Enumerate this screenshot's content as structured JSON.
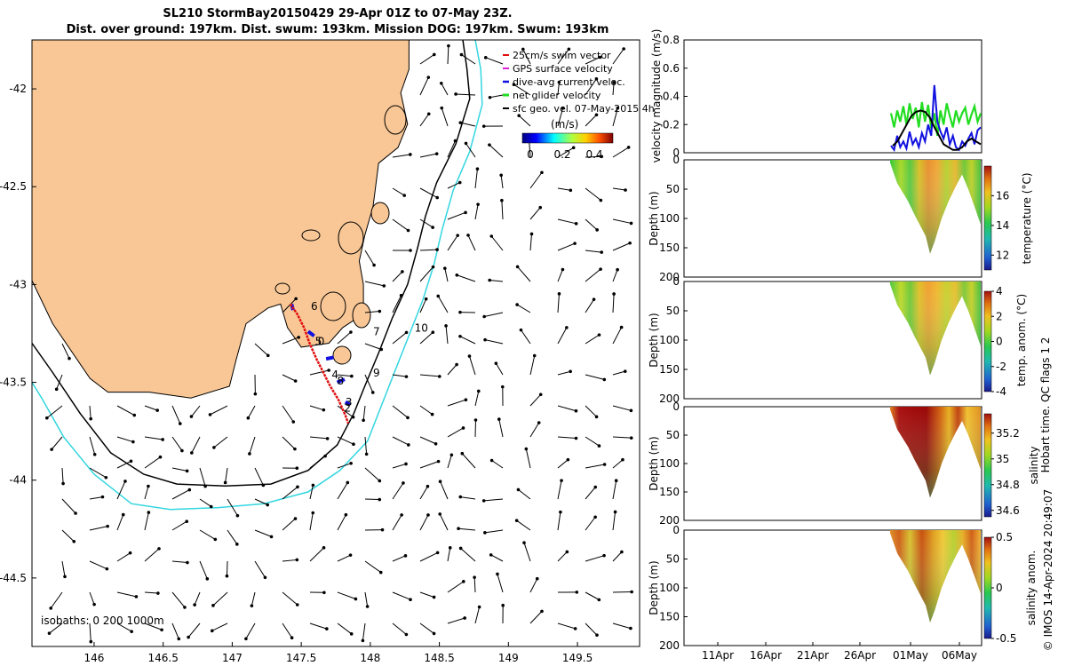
{
  "header": {
    "title_line1": "SL210 StormBay20150429 29-Apr 01Z to 07-May 23Z.",
    "title_line2": "Dist. over ground: 197km. Dist. swum: 193km. Mission DOG: 197km. Swum: 193km"
  },
  "colors": {
    "land": "#f9c796",
    "coast": "#000000",
    "isobath_200": "#000000",
    "isobath_1000": "#33d6e0",
    "track": "#e01010",
    "current": "#1010e0",
    "net": "#22dd22"
  },
  "chart_data": [
    {
      "name": "map",
      "type": "scatter",
      "xlabel": "",
      "ylabel": "",
      "xlim": [
        145.55,
        149.95
      ],
      "ylim": [
        -44.85,
        -41.75
      ],
      "x_ticks": [
        "146",
        "146.5",
        "147",
        "147.5",
        "148",
        "148.5",
        "149",
        "149.5"
      ],
      "y_ticks": [
        "-42",
        "-42.5",
        "-43",
        "-43.5",
        "-44",
        "-44.5"
      ],
      "legend": [
        "25cm/s swim vector",
        "GPS surface velocity",
        "dive-avg current veloc.",
        "net glider velocity",
        "sfc geo. vel. 07-May-2015 4h"
      ],
      "legend_colors": [
        "#e01010",
        "#dd22dd",
        "#1010e0",
        "#22dd22",
        "#000000"
      ],
      "colorbar_title": "(m/s)",
      "colorbar_ticks": [
        "0",
        "0.2",
        "0.4"
      ],
      "isobath_note": "isobaths: 0   200  1000m",
      "day_labels": [
        "6",
        "5",
        "0",
        "4",
        "8",
        "3",
        "2",
        "7",
        "9",
        "10"
      ],
      "track": [
        [
          147.42,
          -43.1
        ],
        [
          147.47,
          -43.15
        ],
        [
          147.52,
          -43.22
        ],
        [
          147.56,
          -43.3
        ],
        [
          147.61,
          -43.38
        ],
        [
          147.66,
          -43.45
        ],
        [
          147.71,
          -43.52
        ],
        [
          147.77,
          -43.59
        ],
        [
          147.82,
          -43.67
        ],
        [
          147.84,
          -43.71
        ]
      ],
      "coast": [
        [
          145.55,
          -41.75
        ],
        [
          148.28,
          -41.75
        ],
        [
          148.28,
          -41.9
        ],
        [
          148.22,
          -42.02
        ],
        [
          148.27,
          -42.18
        ],
        [
          148.2,
          -42.3
        ],
        [
          148.06,
          -42.38
        ],
        [
          148.02,
          -42.6
        ],
        [
          147.96,
          -42.75
        ],
        [
          147.92,
          -42.88
        ],
        [
          147.95,
          -43.0
        ],
        [
          147.95,
          -43.15
        ],
        [
          147.8,
          -43.22
        ],
        [
          147.7,
          -43.3
        ],
        [
          147.5,
          -43.32
        ],
        [
          147.4,
          -43.22
        ],
        [
          147.35,
          -43.1
        ],
        [
          147.26,
          -43.12
        ],
        [
          147.1,
          -43.2
        ],
        [
          147.03,
          -43.38
        ],
        [
          146.98,
          -43.52
        ],
        [
          146.7,
          -43.58
        ],
        [
          146.4,
          -43.55
        ],
        [
          146.1,
          -43.55
        ],
        [
          145.97,
          -43.48
        ],
        [
          145.7,
          -43.2
        ],
        [
          145.55,
          -42.98
        ]
      ],
      "isobath_200": [
        [
          148.67,
          -41.75
        ],
        [
          148.7,
          -41.9
        ],
        [
          148.72,
          -42.05
        ],
        [
          148.62,
          -42.28
        ],
        [
          148.48,
          -42.48
        ],
        [
          148.4,
          -42.65
        ],
        [
          148.34,
          -42.82
        ],
        [
          148.27,
          -43.0
        ],
        [
          148.16,
          -43.17
        ],
        [
          148.06,
          -43.35
        ],
        [
          147.96,
          -43.52
        ],
        [
          147.88,
          -43.66
        ],
        [
          147.76,
          -43.82
        ],
        [
          147.55,
          -43.95
        ],
        [
          147.28,
          -44.02
        ],
        [
          146.95,
          -44.03
        ],
        [
          146.6,
          -44.02
        ],
        [
          146.36,
          -43.97
        ],
        [
          146.12,
          -43.86
        ],
        [
          145.9,
          -43.66
        ],
        [
          145.7,
          -43.45
        ],
        [
          145.55,
          -43.3
        ]
      ],
      "isobath_1000": [
        [
          148.76,
          -41.75
        ],
        [
          148.8,
          -41.9
        ],
        [
          148.81,
          -42.08
        ],
        [
          148.72,
          -42.32
        ],
        [
          148.6,
          -42.52
        ],
        [
          148.52,
          -42.72
        ],
        [
          148.46,
          -42.9
        ],
        [
          148.38,
          -43.08
        ],
        [
          148.28,
          -43.26
        ],
        [
          148.18,
          -43.44
        ],
        [
          148.08,
          -43.62
        ],
        [
          147.98,
          -43.8
        ],
        [
          147.78,
          -43.95
        ],
        [
          147.55,
          -44.06
        ],
        [
          147.23,
          -44.12
        ],
        [
          146.9,
          -44.14
        ],
        [
          146.55,
          -44.15
        ],
        [
          146.27,
          -44.12
        ],
        [
          146.0,
          -43.97
        ],
        [
          145.78,
          -43.78
        ],
        [
          145.62,
          -43.58
        ],
        [
          145.55,
          -43.5
        ]
      ],
      "current_vectors": [
        [
          147.43,
          -43.1,
          0.01,
          -0.04
        ],
        [
          147.55,
          -43.24,
          0.04,
          -0.03
        ],
        [
          147.68,
          -43.38,
          0.05,
          0.01
        ],
        [
          147.76,
          -43.5,
          0.05,
          0.02
        ],
        [
          147.82,
          -43.6,
          0.03,
          -0.02
        ]
      ]
    },
    {
      "name": "velocity",
      "type": "line",
      "ylabel": "velocity magnitude (m/s)",
      "ylim": [
        0,
        0.8
      ],
      "y_ticks": [
        "0",
        "0.2",
        "0.4",
        "0.6",
        "0.8"
      ],
      "xlim": [
        0,
        48
      ],
      "series": [
        {
          "name": "net glider velocity",
          "values": [
            0.28,
            0.18,
            0.3,
            0.22,
            0.33,
            0.2,
            0.35,
            0.24,
            0.32,
            0.18,
            0.36,
            0.22,
            0.34,
            0.17,
            0.28,
            0.12,
            0.3,
            0.2,
            0.35,
            0.26,
            0.18,
            0.3,
            0.22,
            0.28,
            0.32,
            0.2,
            0.27,
            0.33,
            0.22,
            0.28
          ]
        },
        {
          "name": "dive-avg current veloc.",
          "values": [
            0.05,
            0.02,
            0.12,
            0.04,
            0.08,
            0.03,
            0.15,
            0.06,
            0.1,
            0.04,
            0.14,
            0.08,
            0.2,
            0.12,
            0.48,
            0.22,
            0.15,
            0.1,
            0.18,
            0.06,
            0.12,
            0.04,
            0.02,
            0.08,
            0.05,
            0.1,
            0.14,
            0.06,
            0.16,
            0.18
          ]
        },
        {
          "name": "sfc geo. vel.",
          "values": [
            0.05,
            0.08,
            0.14,
            0.2,
            0.26,
            0.29,
            0.3,
            0.29,
            0.25,
            0.18,
            0.12,
            0.06,
            0.04,
            0.02,
            0.02,
            0.04,
            0.08,
            0.1,
            0.08,
            0.06
          ]
        }
      ]
    },
    {
      "name": "temperature",
      "type": "heatmap",
      "ylabel": "Depth (m)",
      "cbar_label": "temperature (°C)",
      "y_ticks": [
        "0",
        "50",
        "100",
        "150",
        "200"
      ],
      "cbar_ticks": [
        "16",
        "14",
        "12"
      ],
      "cbar_range": [
        11,
        18
      ]
    },
    {
      "name": "temp_anomaly",
      "type": "heatmap",
      "ylabel": "Depth (m)",
      "cbar_label": "temp. anom. (°C)",
      "y_ticks": [
        "0",
        "50",
        "100",
        "150",
        "200"
      ],
      "cbar_ticks": [
        "4",
        "2",
        "0",
        "-2",
        "-4"
      ],
      "cbar_range": [
        -4,
        4
      ]
    },
    {
      "name": "salinity",
      "type": "heatmap",
      "ylabel": "Depth (m)",
      "cbar_label": "salinity",
      "y_ticks": [
        "0",
        "50",
        "100",
        "150",
        "200"
      ],
      "cbar_ticks": [
        "35.2",
        "35",
        "34.8",
        "34.6"
      ],
      "cbar_range": [
        34.55,
        35.35
      ]
    },
    {
      "name": "salinity_anomaly",
      "type": "heatmap",
      "ylabel": "Depth (m)",
      "cbar_label": "salinity anom.",
      "y_ticks": [
        "0",
        "50",
        "100",
        "150",
        "200"
      ],
      "cbar_ticks": [
        "0.5",
        "0",
        "-0.5"
      ],
      "cbar_range": [
        -0.5,
        0.5
      ],
      "x_ticks": [
        "11Apr",
        "16Apr",
        "21Apr",
        "26Apr",
        "01May",
        "06May"
      ]
    }
  ],
  "side_note": "Hobart time. QC flags 1 2",
  "credit": "© IMOS 14-Apr-2024 20:49:07"
}
